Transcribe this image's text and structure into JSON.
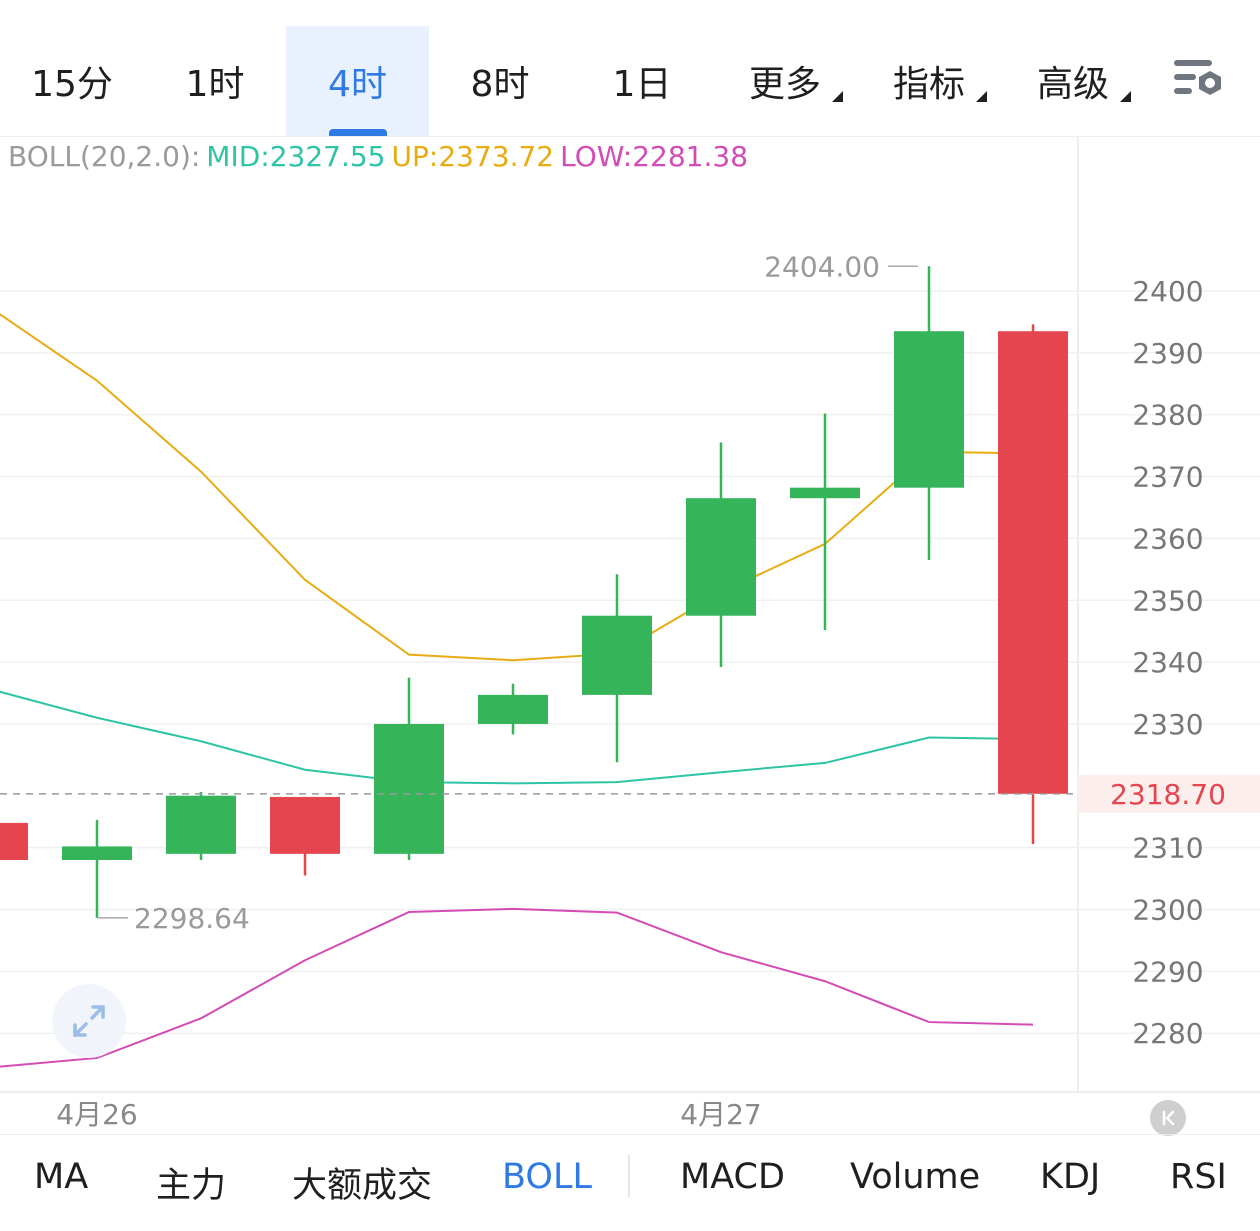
{
  "timeframes": {
    "tabs": [
      {
        "label": "15分",
        "active": false
      },
      {
        "label": "1时",
        "active": false
      },
      {
        "label": "4时",
        "active": true
      },
      {
        "label": "8时",
        "active": false
      },
      {
        "label": "1日",
        "active": false
      },
      {
        "label": "更多",
        "active": false
      },
      {
        "label": "指标",
        "active": false
      },
      {
        "label": "高级",
        "active": false
      }
    ],
    "settings_icon": "settings-icon"
  },
  "indicator_legend": {
    "name": "BOLL(20,2.0):",
    "mid": "MID:2327.55",
    "up": "UP:2373.72",
    "low": "LOW:2281.38"
  },
  "indicator_tabs": [
    {
      "label": "MA",
      "active": false
    },
    {
      "label": "主力",
      "active": false
    },
    {
      "label": "大额成交",
      "active": false
    },
    {
      "label": "BOLL",
      "active": true
    },
    {
      "label": "MACD",
      "active": false
    },
    {
      "label": "Volume",
      "active": false
    },
    {
      "label": "KDJ",
      "active": false
    },
    {
      "label": "RSI",
      "active": false
    }
  ],
  "colors": {
    "accent": "#2f7ae5",
    "up_candle": "#35b45a",
    "down_candle": "#e5454f",
    "mid_line": "#2ec4a6",
    "up_line": "#e8ac13",
    "low_line": "#d34bb4",
    "grid": "#f0f0f0",
    "axis_text": "#777777"
  },
  "chart_data": {
    "type": "candlestick",
    "y_ticks": [
      2400,
      2390,
      2380,
      2370,
      2360,
      2350,
      2340,
      2330,
      2310,
      2300,
      2290,
      2280
    ],
    "ylim": [
      2273,
      2418
    ],
    "x_labels": [
      {
        "label": "4月26",
        "index": 1
      },
      {
        "label": "4月27",
        "index": 7
      }
    ],
    "last_price": "2318.70",
    "high_marker": "2404.00",
    "low_marker": "2298.64",
    "candles": [
      {
        "open": 2314,
        "close": 2308,
        "high": 2314,
        "low": 2308
      },
      {
        "open": 2308,
        "close": 2310.2,
        "high": 2314.5,
        "low": 2298.64
      },
      {
        "open": 2309,
        "close": 2318.4,
        "high": 2319,
        "low": 2308
      },
      {
        "open": 2318.2,
        "close": 2309,
        "high": 2318.2,
        "low": 2305.5
      },
      {
        "open": 2309,
        "close": 2330,
        "high": 2337.5,
        "low": 2308
      },
      {
        "open": 2330,
        "close": 2334.7,
        "high": 2336.5,
        "low": 2328.3
      },
      {
        "open": 2334.7,
        "close": 2347.5,
        "high": 2354.2,
        "low": 2323.8
      },
      {
        "open": 2347.5,
        "close": 2366.5,
        "high": 2375.5,
        "low": 2339.2
      },
      {
        "open": 2366.5,
        "close": 2368.2,
        "high": 2380.2,
        "low": 2345.2
      },
      {
        "open": 2368.2,
        "close": 2393.5,
        "high": 2404,
        "low": 2356.5
      },
      {
        "open": 2393.5,
        "close": 2318.7,
        "high": 2394.6,
        "low": 2310.6
      }
    ],
    "series": [
      {
        "name": "UP",
        "values": [
          2397,
          2385.5,
          2370.8,
          2353.3,
          2341.2,
          2340.3,
          2341.4,
          2351.3,
          2359.1,
          2374,
          2373.72
        ]
      },
      {
        "name": "MID",
        "values": [
          2335.5,
          2331,
          2327.2,
          2322.6,
          2320.6,
          2320.4,
          2320.6,
          2322.2,
          2323.7,
          2327.8,
          2327.55
        ]
      },
      {
        "name": "LOW",
        "values": [
          2274.5,
          2276,
          2282.4,
          2291.8,
          2299.6,
          2300.1,
          2299.5,
          2293.1,
          2288.4,
          2281.8,
          2281.38
        ]
      }
    ]
  }
}
